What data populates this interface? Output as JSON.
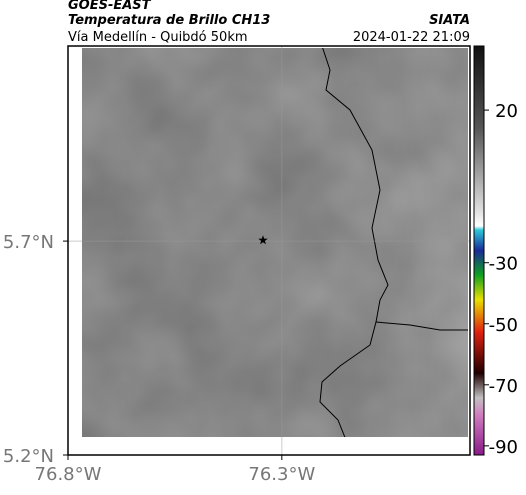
{
  "header": {
    "title": "GOES-EAST",
    "subtitle": "Temperatura de Brillo CH13",
    "source": "SIATA",
    "region": "Vía Medellín - Quibdó 50km",
    "timestamp": "2024-01-22 21:09"
  },
  "map": {
    "xlim": [
      -76.8,
      -75.86
    ],
    "ylim": [
      5.2,
      6.156
    ],
    "xticks": [
      {
        "value": -76.8,
        "label": "76.8°W"
      },
      {
        "value": -76.3,
        "label": "76.3°W"
      }
    ],
    "yticks": [
      {
        "value": 5.7,
        "label": "5.7°N"
      },
      {
        "value": 5.2,
        "label": "5.2°N"
      }
    ],
    "grid": true,
    "marker": {
      "lon": -76.344,
      "lat": 5.702
    }
  },
  "colorbar": {
    "lim": [
      -93,
      41
    ],
    "ticks": [
      20,
      -30,
      -50,
      -70,
      -90
    ]
  }
}
